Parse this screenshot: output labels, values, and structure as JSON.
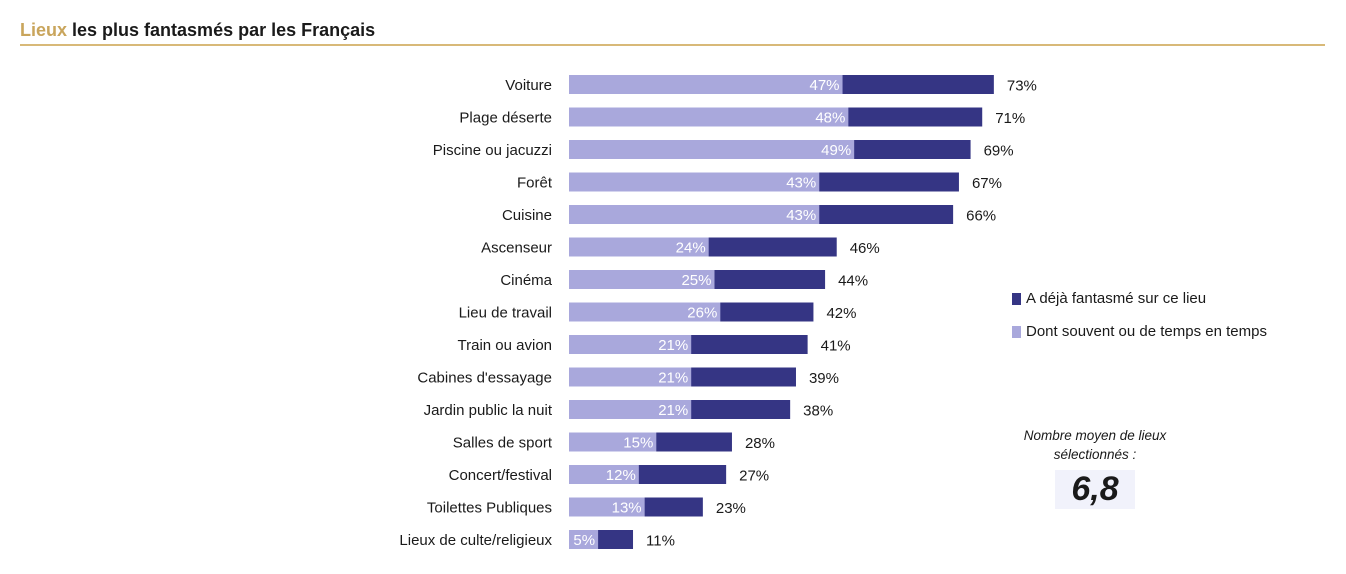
{
  "title": {
    "accent": "Lieux",
    "rest": " les plus fantasmés par les Français"
  },
  "colors": {
    "total": "#353584",
    "often": "#a9a8dc",
    "accent": "#c9a55c"
  },
  "legend": [
    {
      "label": "A déjà fantasmé sur ce lieu",
      "color": "#353584"
    },
    {
      "label": "Dont souvent ou de temps en temps",
      "color": "#a9a8dc"
    }
  ],
  "average": {
    "label": "Nombre moyen de lieux sélectionnés :",
    "value": "6,8"
  },
  "chart_data": {
    "type": "bar",
    "orientation": "horizontal",
    "categories": [
      "Voiture",
      "Plage déserte",
      "Piscine ou jacuzzi",
      "Forêt",
      "Cuisine",
      "Ascenseur",
      "Cinéma",
      "Lieu de travail",
      "Train ou avion",
      "Cabines d'essayage",
      "Jardin public la nuit",
      "Salles de sport",
      "Concert/festival",
      "Toilettes Publiques",
      "Lieux de culte/religieux"
    ],
    "series": [
      {
        "name": "A déjà fantasmé sur ce lieu",
        "values": [
          73,
          71,
          69,
          67,
          66,
          46,
          44,
          42,
          41,
          39,
          38,
          28,
          27,
          23,
          11
        ],
        "labels": [
          "73%",
          "71%",
          "69%",
          "67%",
          "66%",
          "46%",
          "44%",
          "42%",
          "41%",
          "39%",
          "38%",
          "28%",
          "27%",
          "23%",
          "11%"
        ]
      },
      {
        "name": "Dont souvent ou de temps en temps",
        "values": [
          47,
          48,
          49,
          43,
          43,
          24,
          25,
          26,
          21,
          21,
          21,
          15,
          12,
          13,
          5
        ],
        "labels": [
          "47%",
          "48%",
          "49%",
          "43%",
          "43%",
          "24%",
          "25%",
          "26%",
          "21%",
          "21%",
          "21%",
          "15%",
          "12%",
          "13%",
          "5%"
        ]
      }
    ],
    "xlim": [
      0,
      73
    ],
    "grid": false,
    "legend_position": "right"
  }
}
